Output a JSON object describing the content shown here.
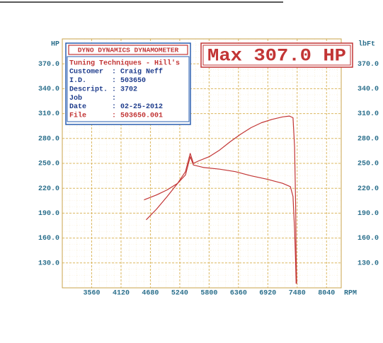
{
  "chart_data": {
    "type": "line",
    "y_label": "HP",
    "y2_label": "lbFt",
    "x_label": "RPM",
    "header": "DYNO DYNAMICS DYNAMOMETER",
    "max_label": "Max 307.0 HP",
    "info": {
      "shop": "Tuning Techniques - Hill's",
      "rows": [
        "Customer  : Craig Neff",
        "I.D.      : 503650",
        "Descript. : 3702",
        "Job       :",
        "Date      : 02-25-2012"
      ],
      "file": "File      : 503650.001"
    },
    "xlim": [
      3000,
      8320
    ],
    "xticks": [
      3560,
      4120,
      4680,
      5240,
      5800,
      6360,
      6920,
      7480,
      8040
    ],
    "ylim": [
      100,
      400
    ],
    "yticks": [
      {
        "value": 130,
        "label": "130.0"
      },
      {
        "value": 160,
        "label": "160.0"
      },
      {
        "value": 190,
        "label": "190.0"
      },
      {
        "value": 220,
        "label": "220.0"
      },
      {
        "value": 250,
        "label": "250.0"
      },
      {
        "value": 280,
        "label": "280.0"
      },
      {
        "value": 310,
        "label": "310.0"
      },
      {
        "value": 340,
        "label": "340.0"
      },
      {
        "value": 370,
        "label": "370.0"
      }
    ],
    "grid": true,
    "series": [
      {
        "color": "#c23535",
        "x": [
          4600,
          4800,
          5000,
          5200,
          5350,
          5440,
          5500,
          5600,
          5800,
          6000,
          6200,
          6400,
          6600,
          6800,
          7000,
          7200,
          7330,
          7400,
          7430,
          7450,
          7460,
          7470
        ],
        "values": [
          182,
          195,
          210,
          226,
          240,
          262,
          250,
          253,
          258,
          266,
          276,
          285,
          293,
          299,
          303,
          306,
          307,
          305,
          270,
          200,
          140,
          105
        ]
      },
      {
        "color": "#c23535",
        "x": [
          4560,
          4800,
          5000,
          5200,
          5350,
          5440,
          5500,
          5700,
          6000,
          6300,
          6600,
          6900,
          7200,
          7350,
          7400,
          7430,
          7450,
          7460
        ],
        "values": [
          206,
          212,
          218,
          226,
          236,
          258,
          248,
          245,
          243,
          240,
          235,
          231,
          226,
          222,
          210,
          170,
          130,
          105
        ]
      }
    ]
  }
}
